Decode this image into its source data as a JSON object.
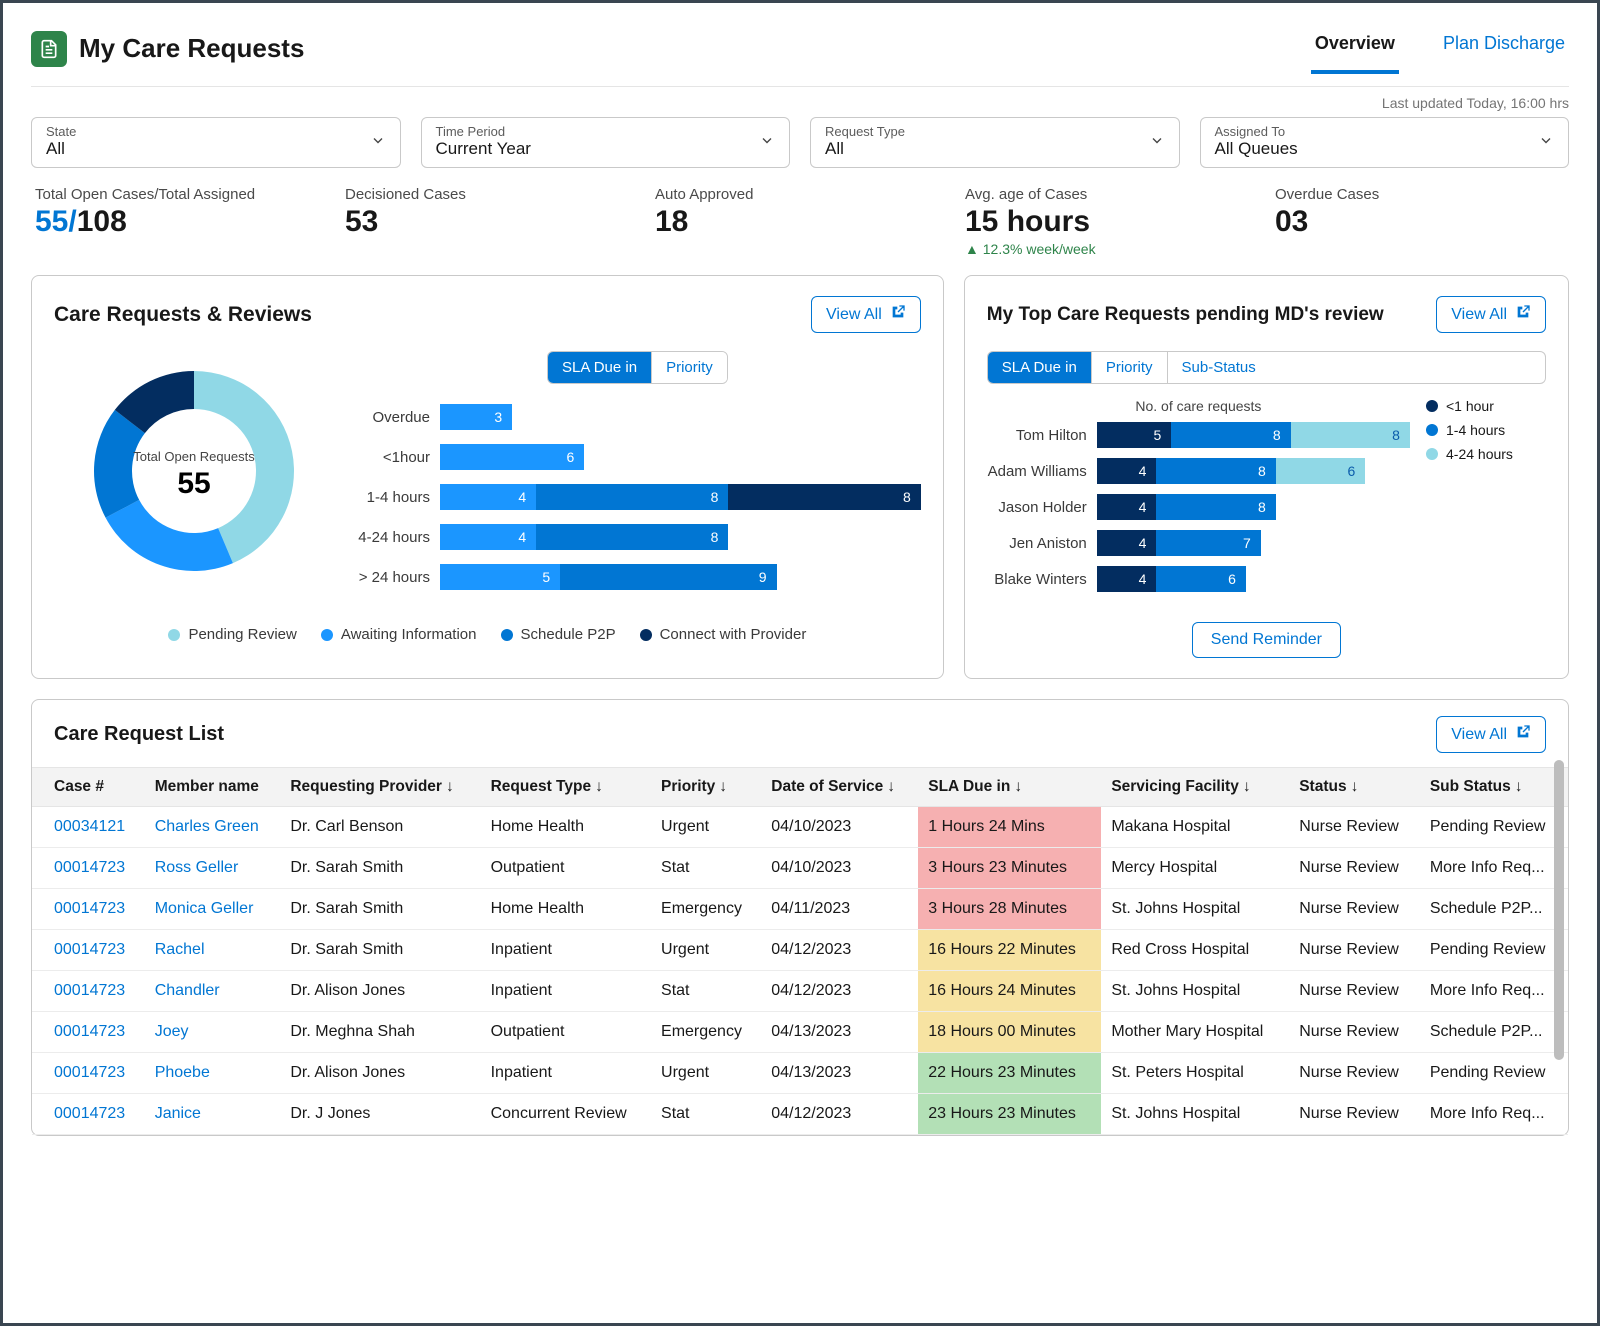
{
  "colors": {
    "brand": "#0176d3",
    "navy": "#032d60",
    "blue2": "#1b96ff",
    "blue3": "#0d9dda",
    "teal": "#90d8e6",
    "red_bg": "#f6b0b1",
    "yellow_bg": "#f7e3a2",
    "green_bg": "#b3e0b6",
    "green_text": "#2e844a"
  },
  "header": {
    "title": "My Care Requests",
    "tabs": [
      {
        "label": "Overview",
        "active": true
      },
      {
        "label": "Plan Discharge",
        "active": false
      }
    ]
  },
  "last_updated": "Last updated Today, 16:00 hrs",
  "filters": [
    {
      "label": "State",
      "value": "All"
    },
    {
      "label": "Time Period",
      "value": "Current Year"
    },
    {
      "label": "Request Type",
      "value": "All"
    },
    {
      "label": "Assigned To",
      "value": "All Queues"
    }
  ],
  "kpis": [
    {
      "label": "Total Open Cases/Total Assigned",
      "value_blue": "55/",
      "value_rest": "108"
    },
    {
      "label": "Decisioned Cases",
      "value": "53"
    },
    {
      "label": "Auto Approved",
      "value": "18"
    },
    {
      "label": "Avg. age of Cases",
      "value": "15 hours",
      "delta": "▲ 12.3% week/week"
    },
    {
      "label": "Overdue Cases",
      "value": "03"
    }
  ],
  "reviews": {
    "title": "Care Requests & Reviews",
    "view_all": "View All",
    "seg": [
      "SLA Due in",
      "Priority"
    ],
    "seg_active": 0,
    "donut": {
      "center_label": "Total Open Requests",
      "center_value": "55",
      "segments": [
        {
          "label": "Pending Review",
          "value": 24,
          "color": "#90d8e6"
        },
        {
          "label": "Awaiting Information",
          "value": 13,
          "color": "#1b96ff"
        },
        {
          "label": "Schedule P2P",
          "value": 10,
          "color": "#0176d3"
        },
        {
          "label": "Connect with Provider",
          "value": 8,
          "color": "#032d60"
        }
      ]
    },
    "bars": {
      "max": 20,
      "rows": [
        {
          "label": "Overdue",
          "segs": [
            {
              "v": 3,
              "c": "#1b96ff"
            }
          ]
        },
        {
          "label": "<1hour",
          "segs": [
            {
              "v": 6,
              "c": "#1b96ff"
            }
          ]
        },
        {
          "label": "1-4 hours",
          "segs": [
            {
              "v": 4,
              "c": "#1b96ff"
            },
            {
              "v": 8,
              "c": "#0176d3"
            },
            {
              "v": 8,
              "c": "#032d60"
            }
          ]
        },
        {
          "label": "4-24 hours",
          "segs": [
            {
              "v": 4,
              "c": "#1b96ff"
            },
            {
              "v": 8,
              "c": "#0176d3"
            }
          ]
        },
        {
          "label": "> 24 hours",
          "segs": [
            {
              "v": 5,
              "c": "#1b96ff"
            },
            {
              "v": 9,
              "c": "#0176d3"
            }
          ]
        }
      ]
    },
    "legend": [
      {
        "label": "Pending Review",
        "color": "#90d8e6"
      },
      {
        "label": "Awaiting Information",
        "color": "#1b96ff"
      },
      {
        "label": "Schedule P2P",
        "color": "#0176d3"
      },
      {
        "label": "Connect with Provider",
        "color": "#032d60"
      }
    ]
  },
  "md": {
    "title": "My Top Care Requests pending MD's review",
    "view_all": "View All",
    "seg": [
      "SLA Due in",
      "Priority",
      "Sub-Status"
    ],
    "seg_active": 0,
    "axis_title": "No. of care requests",
    "max": 21,
    "rows": [
      {
        "label": "Tom Hilton",
        "segs": [
          {
            "v": 5,
            "c": "#032d60"
          },
          {
            "v": 8,
            "c": "#0176d3"
          },
          {
            "v": 8,
            "c": "#90d8e6"
          }
        ]
      },
      {
        "label": "Adam Williams",
        "segs": [
          {
            "v": 4,
            "c": "#032d60"
          },
          {
            "v": 8,
            "c": "#0176d3"
          },
          {
            "v": 6,
            "c": "#90d8e6"
          }
        ]
      },
      {
        "label": "Jason Holder",
        "segs": [
          {
            "v": 4,
            "c": "#032d60"
          },
          {
            "v": 8,
            "c": "#0176d3"
          }
        ]
      },
      {
        "label": "Jen Aniston",
        "segs": [
          {
            "v": 4,
            "c": "#032d60"
          },
          {
            "v": 7,
            "c": "#0176d3"
          }
        ]
      },
      {
        "label": "Blake Winters",
        "segs": [
          {
            "v": 4,
            "c": "#032d60"
          },
          {
            "v": 6,
            "c": "#0176d3"
          }
        ]
      }
    ],
    "legend": [
      {
        "label": "<1 hour",
        "color": "#032d60"
      },
      {
        "label": "1-4 hours",
        "color": "#0176d3"
      },
      {
        "label": "4-24 hours",
        "color": "#90d8e6"
      }
    ],
    "send_reminder": "Send Reminder"
  },
  "list": {
    "title": "Care Request List",
    "view_all": "View All",
    "columns": [
      "Case #",
      "Member name",
      "Requesting Provider",
      "Request Type",
      "Priority",
      "Date of Service",
      "SLA Due in",
      "Servicing Facility",
      "Status",
      "Sub Status"
    ],
    "sort_cols": [
      2,
      3,
      4,
      5,
      6,
      7,
      8,
      9
    ],
    "sla_colors": {
      "red": "#f6b0b1",
      "yellow": "#f7e3a2",
      "green": "#b3e0b6"
    },
    "rows": [
      {
        "case": "00034121",
        "member": "Charles Green",
        "provider": "Dr. Carl Benson",
        "type": "Home Health",
        "priority": "Urgent",
        "dos": "04/10/2023",
        "sla": "1 Hours 24 Mins",
        "sla_c": "red",
        "facility": "Makana Hospital",
        "status": "Nurse Review",
        "sub": "Pending Review"
      },
      {
        "case": "00014723",
        "member": "Ross Geller",
        "provider": "Dr. Sarah Smith",
        "type": "Outpatient",
        "priority": "Stat",
        "dos": "04/10/2023",
        "sla": "3 Hours 23 Minutes",
        "sla_c": "red",
        "facility": "Mercy Hospital",
        "status": "Nurse Review",
        "sub": "More Info Req..."
      },
      {
        "case": "00014723",
        "member": "Monica Geller",
        "provider": "Dr. Sarah Smith",
        "type": "Home Health",
        "priority": "Emergency",
        "dos": "04/11/2023",
        "sla": "3 Hours 28 Minutes",
        "sla_c": "red",
        "facility": "St. Johns Hospital",
        "status": "Nurse Review",
        "sub": "Schedule P2P..."
      },
      {
        "case": "00014723",
        "member": "Rachel",
        "provider": "Dr. Sarah Smith",
        "type": "Inpatient",
        "priority": "Urgent",
        "dos": "04/12/2023",
        "sla": "16 Hours 22 Minutes",
        "sla_c": "yellow",
        "facility": "Red Cross Hospital",
        "status": "Nurse Review",
        "sub": "Pending Review"
      },
      {
        "case": "00014723",
        "member": "Chandler",
        "provider": "Dr. Alison Jones",
        "type": "Inpatient",
        "priority": "Stat",
        "dos": "04/12/2023",
        "sla": "16 Hours 24 Minutes",
        "sla_c": "yellow",
        "facility": "St. Johns Hospital",
        "status": "Nurse Review",
        "sub": "More Info Req..."
      },
      {
        "case": "00014723",
        "member": "Joey",
        "provider": "Dr. Meghna Shah",
        "type": "Outpatient",
        "priority": "Emergency",
        "dos": "04/13/2023",
        "sla": "18 Hours 00 Minutes",
        "sla_c": "yellow",
        "facility": "Mother Mary Hospital",
        "status": "Nurse Review",
        "sub": "Schedule P2P..."
      },
      {
        "case": "00014723",
        "member": "Phoebe",
        "provider": "Dr. Alison Jones",
        "type": "Inpatient",
        "priority": "Urgent",
        "dos": "04/13/2023",
        "sla": "22 Hours 23 Minutes",
        "sla_c": "green",
        "facility": "St. Peters Hospital",
        "status": "Nurse Review",
        "sub": "Pending Review"
      },
      {
        "case": "00014723",
        "member": "Janice",
        "provider": "Dr. J Jones",
        "type": "Concurrent Review",
        "priority": "Stat",
        "dos": "04/12/2023",
        "sla": "23 Hours 23 Minutes",
        "sla_c": "green",
        "facility": "St. Johns Hospital",
        "status": "Nurse Review",
        "sub": "More Info Req..."
      }
    ]
  }
}
